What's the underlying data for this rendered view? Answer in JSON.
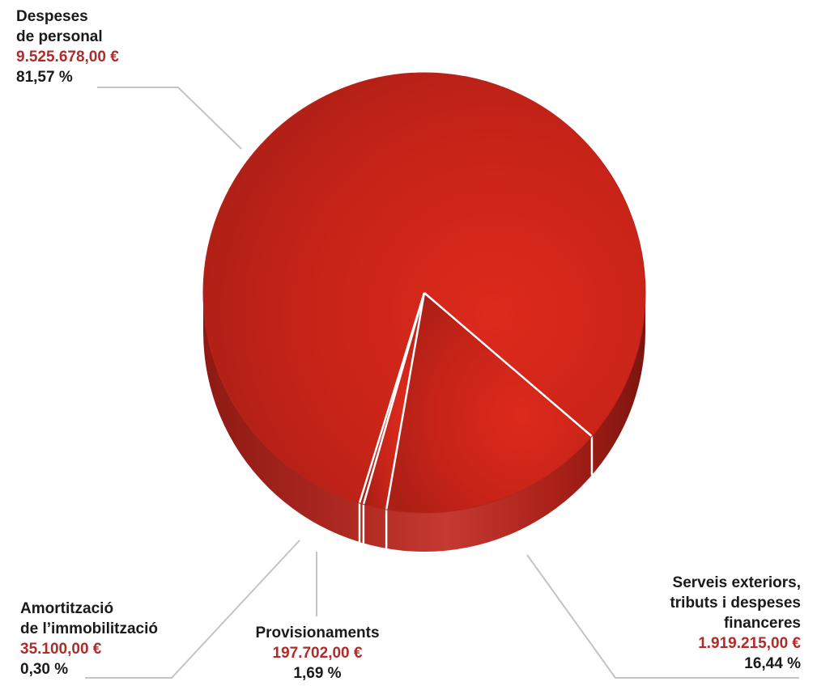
{
  "chart_data": {
    "type": "pie",
    "style": "3d",
    "total_currency": "€",
    "slices": [
      {
        "key": "personal",
        "name_lines": [
          "Despeses",
          "de personal"
        ],
        "amount": "9.525.678,00 €",
        "percent_label": "81,57 %",
        "value": 81.57
      },
      {
        "key": "serveis",
        "name_lines": [
          "Serveis exteriors,",
          "tributs i despeses",
          "financeres"
        ],
        "amount": "1.919.215,00 €",
        "percent_label": "16,44 %",
        "value": 16.44
      },
      {
        "key": "provisionaments",
        "name_lines": [
          "Provisionaments"
        ],
        "amount": "197.702,00 €",
        "percent_label": "1,69 %",
        "value": 1.69
      },
      {
        "key": "amortitzacio",
        "name_lines": [
          "Amortització",
          "de l’immobilització"
        ],
        "amount": "35.100,00 €",
        "percent_label": "0,30 %",
        "value": 0.3
      }
    ]
  },
  "colors": {
    "slice_fill": "#d42a1c",
    "slice_dark": "#b31e14",
    "side_fill": "#a81e18",
    "separator": "#ffffff",
    "leader": "#c4c4c4",
    "amount_text": "#b32a2a",
    "label_text": "#1a1a1a"
  }
}
